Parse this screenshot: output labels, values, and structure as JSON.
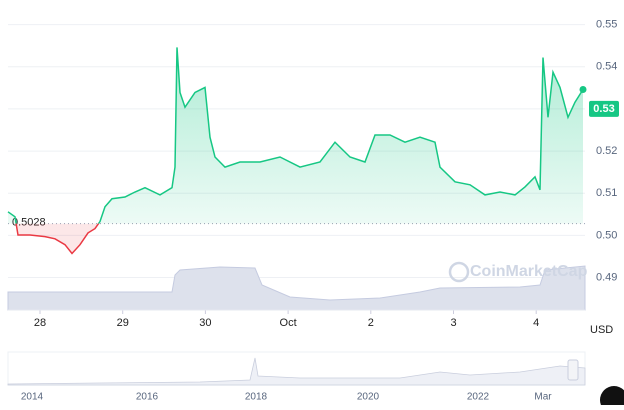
{
  "chart_data": {
    "type": "line",
    "x": [
      0.613,
      0.698,
      0.734,
      0.879,
      1.06,
      1.181,
      1.302,
      1.387,
      1.484,
      1.58,
      1.665,
      1.726,
      1.786,
      1.871,
      2.028,
      2.149,
      2.27,
      2.451,
      2.596,
      2.632,
      2.657,
      2.693,
      2.753,
      2.874,
      2.995,
      3.056,
      3.116,
      3.237,
      3.418,
      3.66,
      3.902,
      4.144,
      4.386,
      4.567,
      4.748,
      4.93,
      5.051,
      5.232,
      5.414,
      5.595,
      5.776,
      5.837,
      6.018,
      6.2,
      6.381,
      6.562,
      6.744,
      6.865,
      6.985,
      7.046,
      7.082,
      7.143,
      7.203,
      7.288,
      7.384,
      7.469,
      7.566
    ],
    "series": [
      {
        "color": "#16c784",
        "values": [
          0.5056,
          0.5044,
          0.5001,
          0.5001,
          0.4997,
          0.4992,
          0.4978,
          0.4957,
          0.4978,
          0.5006,
          0.5016,
          0.5033,
          0.5068,
          0.5087,
          0.5091,
          0.5103,
          0.5113,
          0.5096,
          0.5113,
          0.5162,
          0.5446,
          0.5339,
          0.5304,
          0.5339,
          0.5351,
          0.5233,
          0.5186,
          0.5162,
          0.5174,
          0.5174,
          0.5186,
          0.5162,
          0.5174,
          0.5221,
          0.5186,
          0.5174,
          0.5238,
          0.5238,
          0.5221,
          0.5233,
          0.5221,
          0.5162,
          0.5127,
          0.512,
          0.5096,
          0.5103,
          0.5096,
          0.5115,
          0.5139,
          0.5108,
          0.5422,
          0.528,
          0.5387,
          0.5351,
          0.528,
          0.5316,
          0.5346
        ]
      }
    ],
    "below_color": "#ea3943",
    "baseline": 0.5028,
    "current_price": 0.53,
    "xlim": [
      0.613,
      7.59
    ],
    "xticks": [
      {
        "value": 1,
        "label": "28"
      },
      {
        "value": 2,
        "label": "29"
      },
      {
        "value": 3,
        "label": "30"
      },
      {
        "value": 4,
        "label": "Oct"
      },
      {
        "value": 5,
        "label": "2"
      },
      {
        "value": 6,
        "label": "3"
      },
      {
        "value": 7,
        "label": "4"
      }
    ],
    "ylim": [
      0.4823,
      0.5518
    ],
    "yticks": [
      0.49,
      {
        "value": 0.5,
        "label": "0.50"
      },
      0.51,
      0.52,
      0.53,
      0.54,
      0.55
    ],
    "currency": "USD",
    "watermark": "CoinMarketCap",
    "navigator_labels": [
      "2014",
      "2016",
      "2018",
      "2020",
      "2022",
      "Mar"
    ],
    "grid": true
  }
}
